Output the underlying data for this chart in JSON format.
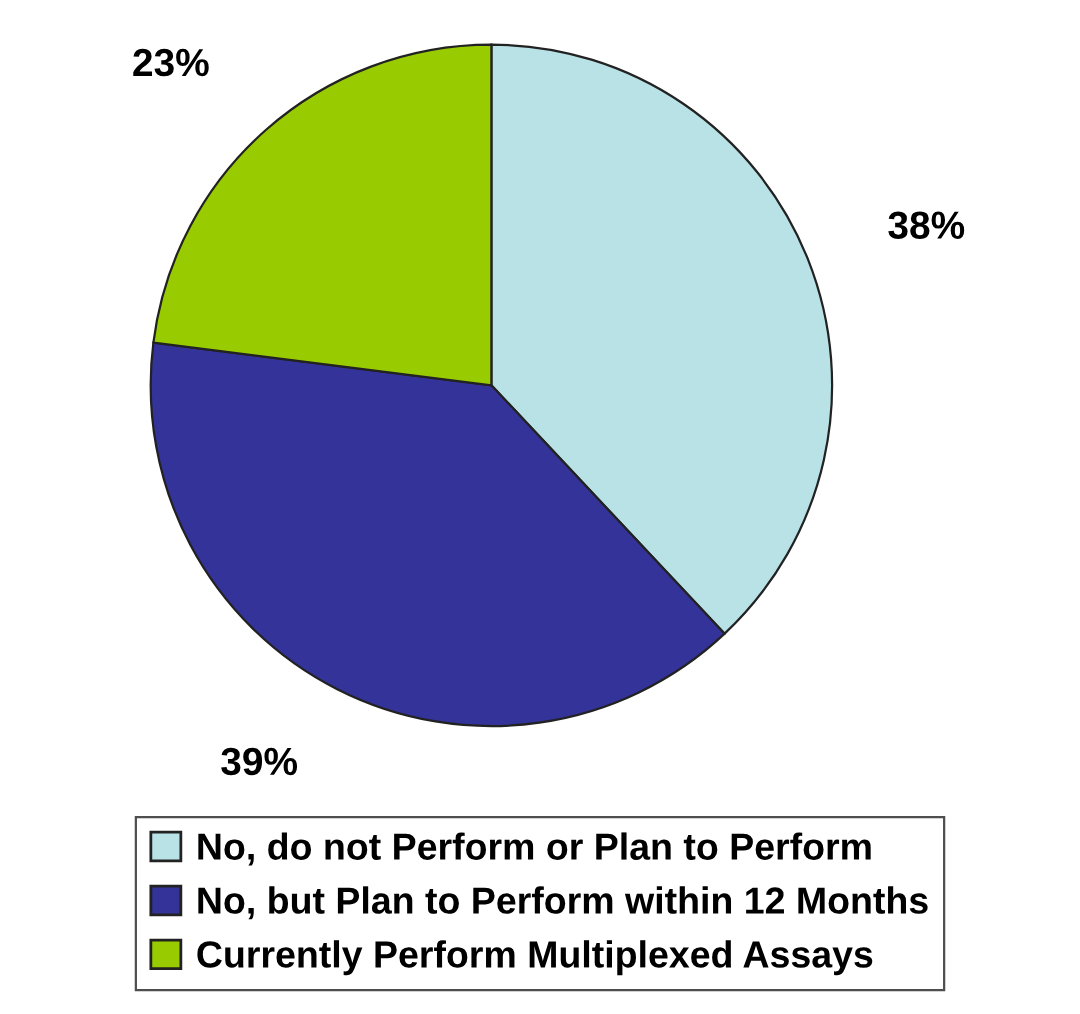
{
  "chart_data": {
    "type": "pie",
    "categories": [
      "No, do not Perform or Plan to Perform",
      "No, but Plan to Perform within 12 Months",
      "Currently Perform Multiplexed Assays"
    ],
    "values": [
      38,
      39,
      23
    ],
    "colors": [
      "#b8e2e6",
      "#333399",
      "#99cc00"
    ],
    "value_labels": [
      "38%",
      "39%",
      "23%"
    ],
    "legend": "bottom"
  }
}
